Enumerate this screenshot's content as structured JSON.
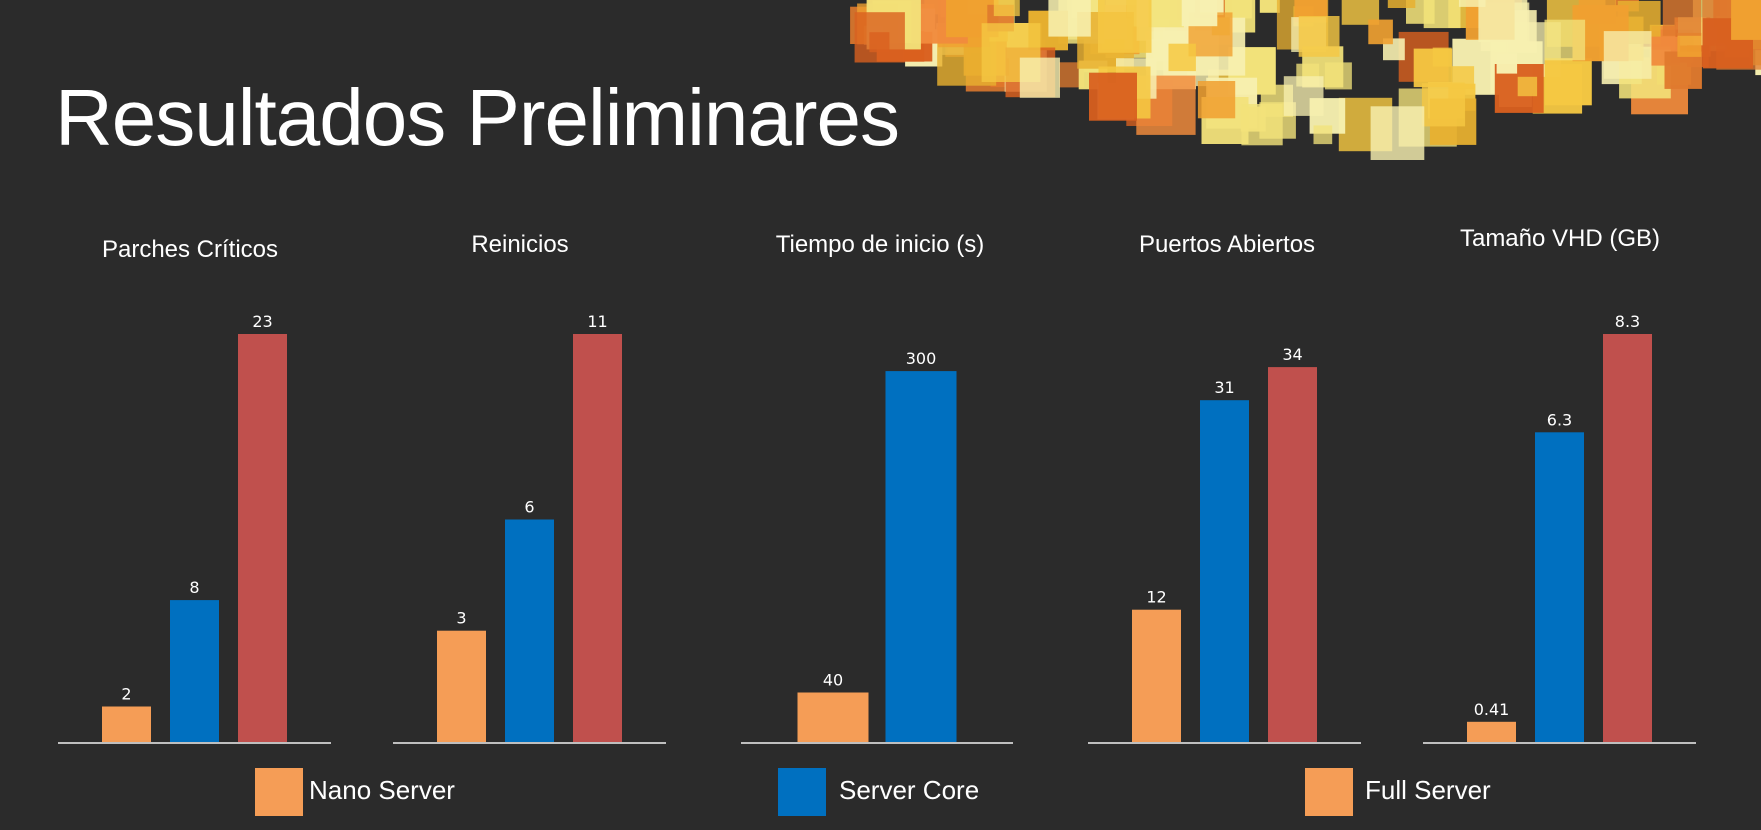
{
  "title": "Resultados Preliminares",
  "colors": {
    "background": "#2b2b2b",
    "axis": "#bfbfbf",
    "text": "#ffffff",
    "banner": [
      "#e07a2e",
      "#f0a030",
      "#f5c842",
      "#f2e27a",
      "#f7f0b0",
      "#d9601f",
      "#f08a3c",
      "#e8b030"
    ]
  },
  "legend": [
    {
      "label": "Nano Server",
      "color": "#f59d56"
    },
    {
      "label": "Server Core",
      "color": "#0070c0"
    },
    {
      "label": "Full Server",
      "color": "#f59d56"
    }
  ],
  "chart_data": [
    {
      "type": "bar",
      "title": "Parches Críticos",
      "categories": [
        "Nano Server",
        "Server Core",
        "Full Server"
      ],
      "values": [
        2,
        8,
        23
      ],
      "value_labels": [
        "2",
        "8",
        "23"
      ],
      "colors": [
        "#f59d56",
        "#0070c0",
        "#c0504d"
      ],
      "ylim": [
        0,
        23
      ]
    },
    {
      "type": "bar",
      "title": "Reinicios",
      "categories": [
        "Nano Server",
        "Server Core",
        "Full Server"
      ],
      "values": [
        3,
        6,
        11
      ],
      "value_labels": [
        "3",
        "6",
        "11"
      ],
      "colors": [
        "#f59d56",
        "#0070c0",
        "#c0504d"
      ],
      "ylim": [
        0,
        11
      ]
    },
    {
      "type": "bar",
      "title": "Tiempo de inicio (s)",
      "categories": [
        "Nano Server",
        "Server Core"
      ],
      "values": [
        40,
        300
      ],
      "value_labels": [
        "40",
        "300"
      ],
      "colors": [
        "#f59d56",
        "#0070c0"
      ],
      "ylim": [
        0,
        330
      ]
    },
    {
      "type": "bar",
      "title": "Puertos Abiertos",
      "categories": [
        "Nano Server",
        "Server Core",
        "Full Server"
      ],
      "values": [
        12,
        31,
        34
      ],
      "value_labels": [
        "12",
        "31",
        "34"
      ],
      "colors": [
        "#f59d56",
        "#0070c0",
        "#c0504d"
      ],
      "ylim": [
        0,
        37
      ]
    },
    {
      "type": "bar",
      "title": "Tamaño VHD (GB)",
      "categories": [
        "Nano Server",
        "Server Core",
        "Full Server"
      ],
      "values": [
        0.41,
        6.3,
        8.3
      ],
      "value_labels": [
        "0.41",
        "6.3",
        "8.3"
      ],
      "colors": [
        "#f59d56",
        "#0070c0",
        "#c0504d"
      ],
      "ylim": [
        0,
        8.3
      ]
    }
  ]
}
